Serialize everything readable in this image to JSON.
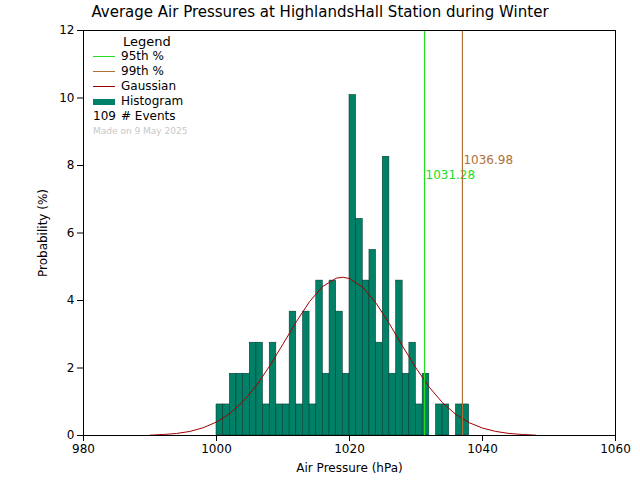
{
  "chart_data": {
    "type": "histogram",
    "title": "Average Air Pressures at HighlandsHall Station during Winter",
    "x_label": "Air Pressure (hPa)",
    "y_label": "Probability (%)",
    "xlim": [
      980,
      1060
    ],
    "xticks": [
      980,
      1000,
      1020,
      1040,
      1060
    ],
    "ylim": [
      0,
      12
    ],
    "yticks": [
      0,
      2,
      4,
      6,
      8,
      10,
      12
    ],
    "legend": "top-left",
    "legend_title": "Legend",
    "events": 109,
    "events_label": "# Events",
    "note": "Made on 9 May 2025",
    "reference_lines": [
      {
        "name": "95th %",
        "x": 1031.28,
        "color": "#22dd22"
      },
      {
        "name": "99th %",
        "x": 1036.98,
        "color": "#b0703a"
      }
    ],
    "series": [
      {
        "name": "Gaussian",
        "type": "line",
        "color": "#a00000",
        "x": [
          990,
          992,
          994,
          996,
          998,
          1000,
          1002,
          1004,
          1006,
          1008,
          1010,
          1012,
          1014,
          1016,
          1018,
          1019,
          1020,
          1022,
          1024,
          1026,
          1028,
          1030,
          1032,
          1034,
          1036,
          1038,
          1040,
          1042,
          1044,
          1046,
          1048
        ],
        "values": [
          0.01,
          0.03,
          0.06,
          0.12,
          0.23,
          0.4,
          0.65,
          1.01,
          1.48,
          2.06,
          2.71,
          3.37,
          3.97,
          4.42,
          4.66,
          4.69,
          4.65,
          4.39,
          3.92,
          3.31,
          2.64,
          2.0,
          1.43,
          0.97,
          0.62,
          0.38,
          0.22,
          0.12,
          0.06,
          0.03,
          0.01
        ]
      },
      {
        "name": "Histogram",
        "type": "bar",
        "color": "#008066",
        "bins": [
          1000,
          1001,
          1002,
          1003,
          1004,
          1005,
          1006,
          1007,
          1008,
          1009,
          1010,
          1011,
          1012,
          1013,
          1014,
          1015,
          1016,
          1017,
          1018,
          1019,
          1020,
          1021,
          1022,
          1023,
          1024,
          1025,
          1026,
          1027,
          1028,
          1029,
          1030,
          1031,
          1032,
          1033,
          1034,
          1035,
          1036,
          1037,
          1038
        ],
        "values": [
          0.92,
          0.92,
          1.83,
          1.83,
          1.83,
          2.75,
          2.75,
          0.92,
          2.75,
          0.92,
          0.92,
          3.67,
          0.92,
          3.67,
          0.92,
          4.59,
          1.83,
          4.59,
          3.67,
          1.83,
          10.09,
          6.42,
          4.59,
          5.5,
          2.75,
          8.26,
          1.83,
          4.59,
          1.83,
          2.75,
          0.92,
          1.83,
          0,
          0.92,
          0.92,
          0,
          0.92,
          0.92
        ]
      }
    ]
  }
}
